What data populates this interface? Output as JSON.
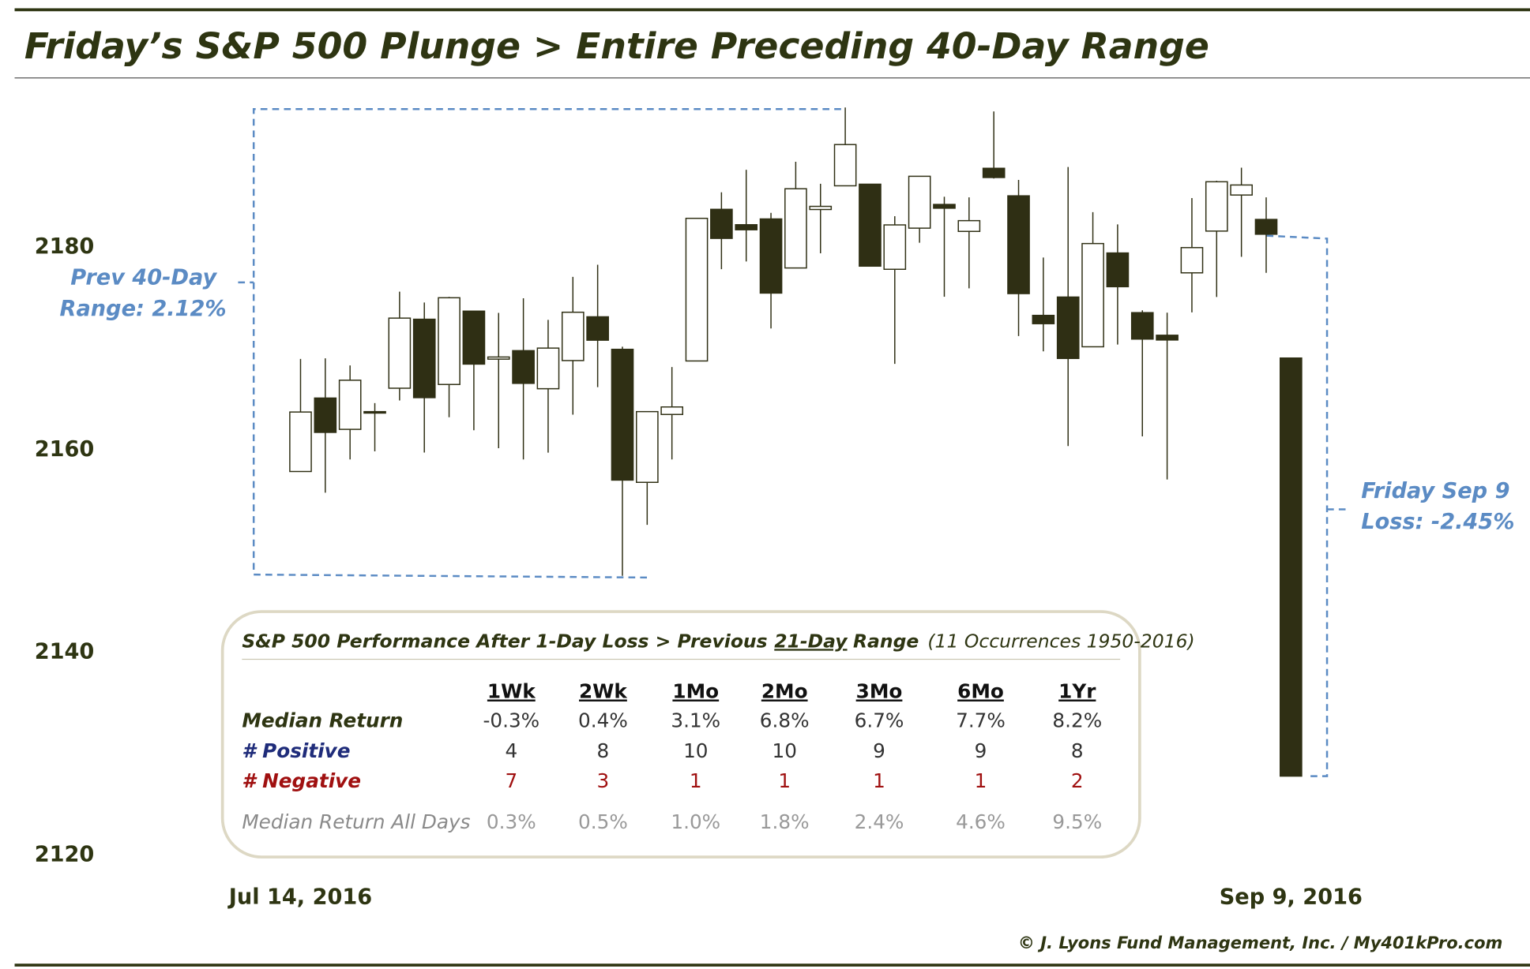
{
  "chart_data": {
    "type": "candlestick",
    "title": "Friday’s S&P 500 Plunge > Entire Preceding 40-Day Range",
    "categories": [
      "Jul 14, 2016",
      null,
      null,
      null,
      null,
      null,
      null,
      null,
      null,
      null,
      null,
      null,
      null,
      null,
      null,
      null,
      null,
      null,
      null,
      null,
      null,
      null,
      null,
      null,
      null,
      null,
      null,
      null,
      null,
      null,
      null,
      null,
      null,
      null,
      null,
      null,
      null,
      null,
      null,
      null,
      "Sep 9, 2016"
    ],
    "open": [
      2157.88,
      2165.13,
      2162.04,
      2163.79,
      2166.1,
      2172.91,
      2166.47,
      2173.71,
      2168.97,
      2169.81,
      2166.05,
      2168.83,
      2173.15,
      2169.94,
      2156.81,
      2163.51,
      2168.79,
      2183.76,
      2182.24,
      2182.81,
      2177.97,
      2183.74,
      2186.08,
      2186.24,
      2177.84,
      2181.9,
      2184.24,
      2181.58,
      2187.81,
      2185.09,
      2173.29,
      2175.1,
      2170.19,
      2179.45,
      2173.56,
      2171.33,
      2177.49,
      2181.61,
      2185.17,
      2182.76,
      2169.08
    ],
    "high": [
      2168.99,
      2169.05,
      2168.35,
      2164.63,
      2175.63,
      2174.56,
      2175.11,
      2173.71,
      2173.54,
      2174.98,
      2172.85,
      2177.09,
      2178.29,
      2170.2,
      2163.79,
      2168.19,
      2182.87,
      2185.44,
      2187.66,
      2183.41,
      2188.45,
      2186.28,
      2193.81,
      2186.24,
      2183.08,
      2187.03,
      2185.0,
      2184.94,
      2193.42,
      2186.66,
      2179.0,
      2187.94,
      2183.48,
      2182.27,
      2173.79,
      2173.56,
      2184.87,
      2186.57,
      2187.87,
      2184.94,
      2169.08
    ],
    "low": [
      2157.88,
      2155.79,
      2159.07,
      2159.87,
      2164.89,
      2159.75,
      2163.24,
      2161.95,
      2160.18,
      2159.07,
      2159.74,
      2163.49,
      2166.21,
      2147.58,
      2152.61,
      2159.07,
      2168.79,
      2177.85,
      2178.61,
      2172.0,
      2177.97,
      2179.42,
      2186.08,
      2178.14,
      2168.5,
      2180.46,
      2175.13,
      2175.96,
      2186.8,
      2171.25,
      2169.74,
      2160.39,
      2170.19,
      2170.41,
      2161.35,
      2157.09,
      2173.59,
      2175.1,
      2179.07,
      2177.49,
      2127.81
    ],
    "close": [
      2163.75,
      2161.74,
      2166.89,
      2163.78,
      2173.02,
      2165.17,
      2175.03,
      2168.48,
      2169.18,
      2166.58,
      2170.06,
      2173.6,
      2170.84,
      2157.03,
      2163.79,
      2164.25,
      2182.87,
      2180.89,
      2181.74,
      2175.49,
      2185.79,
      2184.05,
      2190.15,
      2178.15,
      2182.22,
      2187.02,
      2183.87,
      2182.64,
      2186.9,
      2175.44,
      2172.47,
      2169.04,
      2180.38,
      2176.12,
      2170.95,
      2170.86,
      2179.98,
      2186.48,
      2186.16,
      2181.3,
      2127.81
    ],
    "up_color": "#ffffff",
    "down_color": "#2f2f14",
    "edge_color": "#2f2f14",
    "ylim": [
      2118,
      2195
    ],
    "yticks": [
      2120,
      2140,
      2160,
      2180
    ],
    "grid": false,
    "annotations": [
      {
        "lines": [
          "Prev 40-Day",
          "Range: 2.12%"
        ]
      },
      {
        "lines": [
          "Friday Sep 9",
          "Loss: -2.45%"
        ]
      }
    ]
  },
  "table": {
    "title": {
      "main": "S&P 500 Performance After 1-Day Loss > Previous",
      "underlined": "21-Day",
      "after": "Range",
      "note": "(11 Occurrences 1950-2016)"
    },
    "columns": [
      "1Wk",
      "2Wk",
      "1Mo",
      "2Mo",
      "3Mo",
      "6Mo",
      "1Yr"
    ],
    "rows": [
      {
        "label": "Median Return",
        "values": [
          "-0.3%",
          "0.4%",
          "3.1%",
          "6.8%",
          "6.7%",
          "7.7%",
          "8.2%"
        ]
      },
      {
        "label": "# Positive",
        "values": [
          "4",
          "8",
          "10",
          "10",
          "9",
          "9",
          "8"
        ]
      },
      {
        "label": "# Negative",
        "values": [
          "7",
          "3",
          "1",
          "1",
          "1",
          "1",
          "2"
        ]
      },
      {
        "label": "Median Return All Days",
        "values": [
          "0.3%",
          "0.5%",
          "1.0%",
          "1.8%",
          "2.4%",
          "4.6%",
          "9.5%"
        ]
      }
    ]
  },
  "footer": "© J. Lyons Fund Management, Inc. / My401kPro.com"
}
